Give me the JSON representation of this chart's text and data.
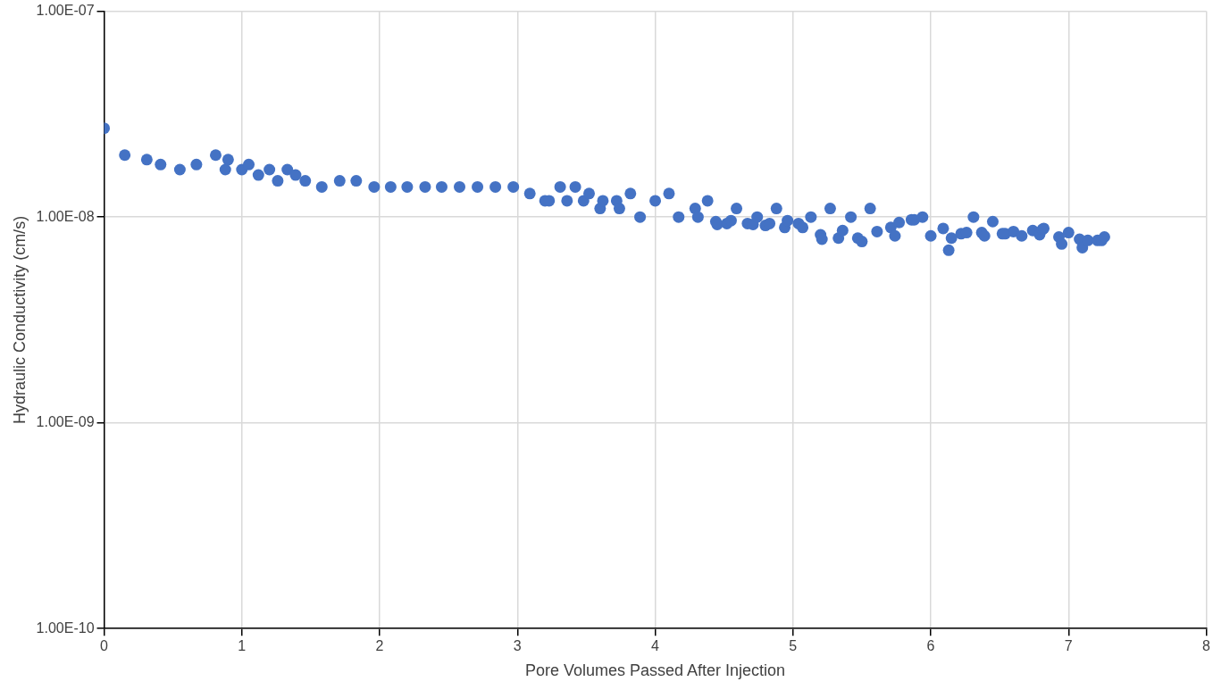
{
  "chart_data": {
    "type": "scatter",
    "xlabel": "Pore Volumes Passed After Injection",
    "ylabel": "Hydraulic Conductivity (cm/s)",
    "log": "y",
    "grid": true,
    "marker": "circle",
    "xlim": [
      0,
      8
    ],
    "xticks": [
      0,
      1,
      2,
      3,
      4,
      5,
      6,
      7,
      8
    ],
    "ylim": [
      1e-10,
      1e-07
    ],
    "yticks": [
      {
        "value": 1e-10,
        "label": "1.00E-10"
      },
      {
        "value": 1e-09,
        "label": "1.00E-09"
      },
      {
        "value": 1e-08,
        "label": "1.00E-08"
      },
      {
        "value": 1e-07,
        "label": "1.00E-07"
      }
    ],
    "series": [
      {
        "color": "#4472c4",
        "x": [
          0,
          0.15,
          0.31,
          0.41,
          0.55,
          0.67,
          0.81,
          0.88,
          0.9,
          1.0,
          1.05,
          1.12,
          1.2,
          1.26,
          1.33,
          1.39,
          1.46,
          1.58,
          1.71,
          1.83,
          1.96,
          2.08,
          2.2,
          2.33,
          2.45,
          2.58,
          2.71,
          2.84,
          2.97,
          3.09,
          3.2,
          3.23,
          3.31,
          3.36,
          3.42,
          3.48,
          3.52,
          3.6,
          3.62,
          3.72,
          3.74,
          3.82,
          3.89,
          4.0,
          4.1,
          4.17,
          4.29,
          4.31,
          4.38,
          4.44,
          4.45,
          4.52,
          4.55,
          4.59,
          4.67,
          4.71,
          4.74,
          4.8,
          4.83,
          4.88,
          4.94,
          4.96,
          5.04,
          5.07,
          5.13,
          5.2,
          5.21,
          5.27,
          5.33,
          5.36,
          5.42,
          5.47,
          5.5,
          5.56,
          5.61,
          5.71,
          5.74,
          5.77,
          5.86,
          5.88,
          5.94,
          6.0,
          6.09,
          6.13,
          6.15,
          6.22,
          6.26,
          6.31,
          6.37,
          6.39,
          6.45,
          6.52,
          6.54,
          6.6,
          6.66,
          6.74,
          6.79,
          6.81,
          6.82,
          6.93,
          6.95,
          7.0,
          7.08,
          7.1,
          7.14,
          7.21,
          7.24,
          7.26
        ],
        "values": [
          2.7e-08,
          2e-08,
          1.9e-08,
          1.8e-08,
          1.7e-08,
          1.8e-08,
          2e-08,
          1.7e-08,
          1.9e-08,
          1.7e-08,
          1.8e-08,
          1.6e-08,
          1.7e-08,
          1.5e-08,
          1.7e-08,
          1.6e-08,
          1.5e-08,
          1.4e-08,
          1.5e-08,
          1.5e-08,
          1.4e-08,
          1.4e-08,
          1.4e-08,
          1.4e-08,
          1.4e-08,
          1.4e-08,
          1.4e-08,
          1.4e-08,
          1.4e-08,
          1.3e-08,
          1.2e-08,
          1.2e-08,
          1.4e-08,
          1.2e-08,
          1.4e-08,
          1.2e-08,
          1.3e-08,
          1.1e-08,
          1.2e-08,
          1.2e-08,
          1.1e-08,
          1.3e-08,
          1e-08,
          1.2e-08,
          1.3e-08,
          1e-08,
          1.1e-08,
          1e-08,
          1.2e-08,
          9.5e-09,
          9.2e-09,
          9.3e-09,
          9.6e-09,
          1.1e-08,
          9.3e-09,
          9.2e-09,
          1e-08,
          9.1e-09,
          9.3e-09,
          1.1e-08,
          8.9e-09,
          9.6e-09,
          9.3e-09,
          8.9e-09,
          1e-08,
          8.2e-09,
          7.8e-09,
          1.1e-08,
          7.9e-09,
          8.6e-09,
          1e-08,
          7.9e-09,
          7.6e-09,
          1.1e-08,
          8.5e-09,
          8.9e-09,
          8.1e-09,
          9.4e-09,
          9.7e-09,
          9.7e-09,
          1e-08,
          8.1e-09,
          8.8e-09,
          6.9e-09,
          7.9e-09,
          8.3e-09,
          8.4e-09,
          1e-08,
          8.4e-09,
          8.1e-09,
          9.5e-09,
          8.3e-09,
          8.3e-09,
          8.5e-09,
          8.1e-09,
          8.6e-09,
          8.2e-09,
          8.7e-09,
          8.8e-09,
          8e-09,
          7.4e-09,
          8.4e-09,
          7.8e-09,
          7.1e-09,
          7.7e-09,
          7.7e-09,
          7.7e-09,
          8e-09
        ]
      }
    ]
  }
}
